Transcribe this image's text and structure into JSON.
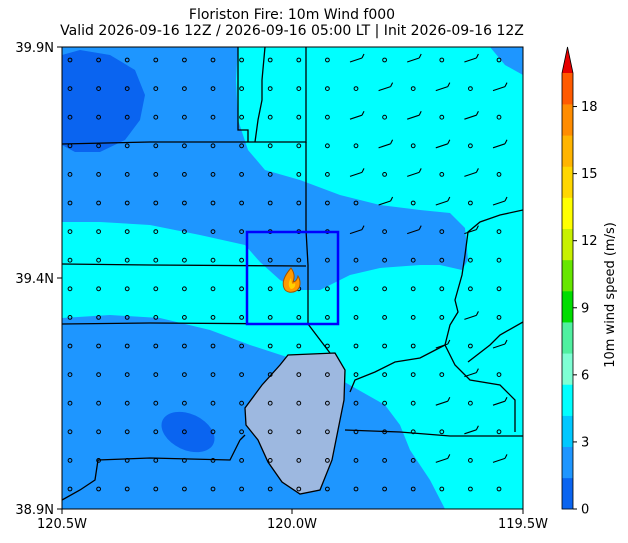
{
  "title": {
    "line1": "Floriston Fire: 10m Wind f000",
    "line2": "Valid 2026-09-16 12Z / 2026-09-16 05:00 LT | Init 2026-09-16 12Z"
  },
  "map": {
    "lat_ticks": [
      {
        "label": "39.9N",
        "lat": 39.9
      },
      {
        "label": "39.4N",
        "lat": 39.4
      },
      {
        "label": "38.9N",
        "lat": 38.9
      }
    ],
    "lon_ticks": [
      {
        "label": "120.5W",
        "lon": -120.5
      },
      {
        "label": "120.0W",
        "lon": -120.0
      },
      {
        "label": "119.5W",
        "lon": -119.5
      }
    ],
    "extent": {
      "lon_min": -120.5,
      "lon_max": -119.5,
      "lat_min": 38.9,
      "lat_max": 39.9
    },
    "fire_marker": {
      "name": "fire-icon",
      "lon": -120.0,
      "lat": 39.4
    },
    "lake_color": "#9db8e0",
    "box_color": "#0000ff"
  },
  "colorbar": {
    "label": "10m wind speed (m/s)",
    "ticks": [
      {
        "label": "0",
        "value": 0
      },
      {
        "label": "3",
        "value": 3
      },
      {
        "label": "6",
        "value": 6
      },
      {
        "label": "9",
        "value": 9
      },
      {
        "label": "12",
        "value": 12
      },
      {
        "label": "15",
        "value": 15
      },
      {
        "label": "18",
        "value": 18
      }
    ],
    "vmin": 0,
    "vmax": 19.5,
    "step": 1.5,
    "colors": [
      "#0a64f0",
      "#1e96ff",
      "#00c8ff",
      "#00ffff",
      "#7fffd4",
      "#50f0a0",
      "#00dd00",
      "#66e600",
      "#c8f000",
      "#ffff00",
      "#ffd700",
      "#ffb400",
      "#ff8c00",
      "#ff5a00"
    ],
    "extend_color": "#e60000"
  }
}
